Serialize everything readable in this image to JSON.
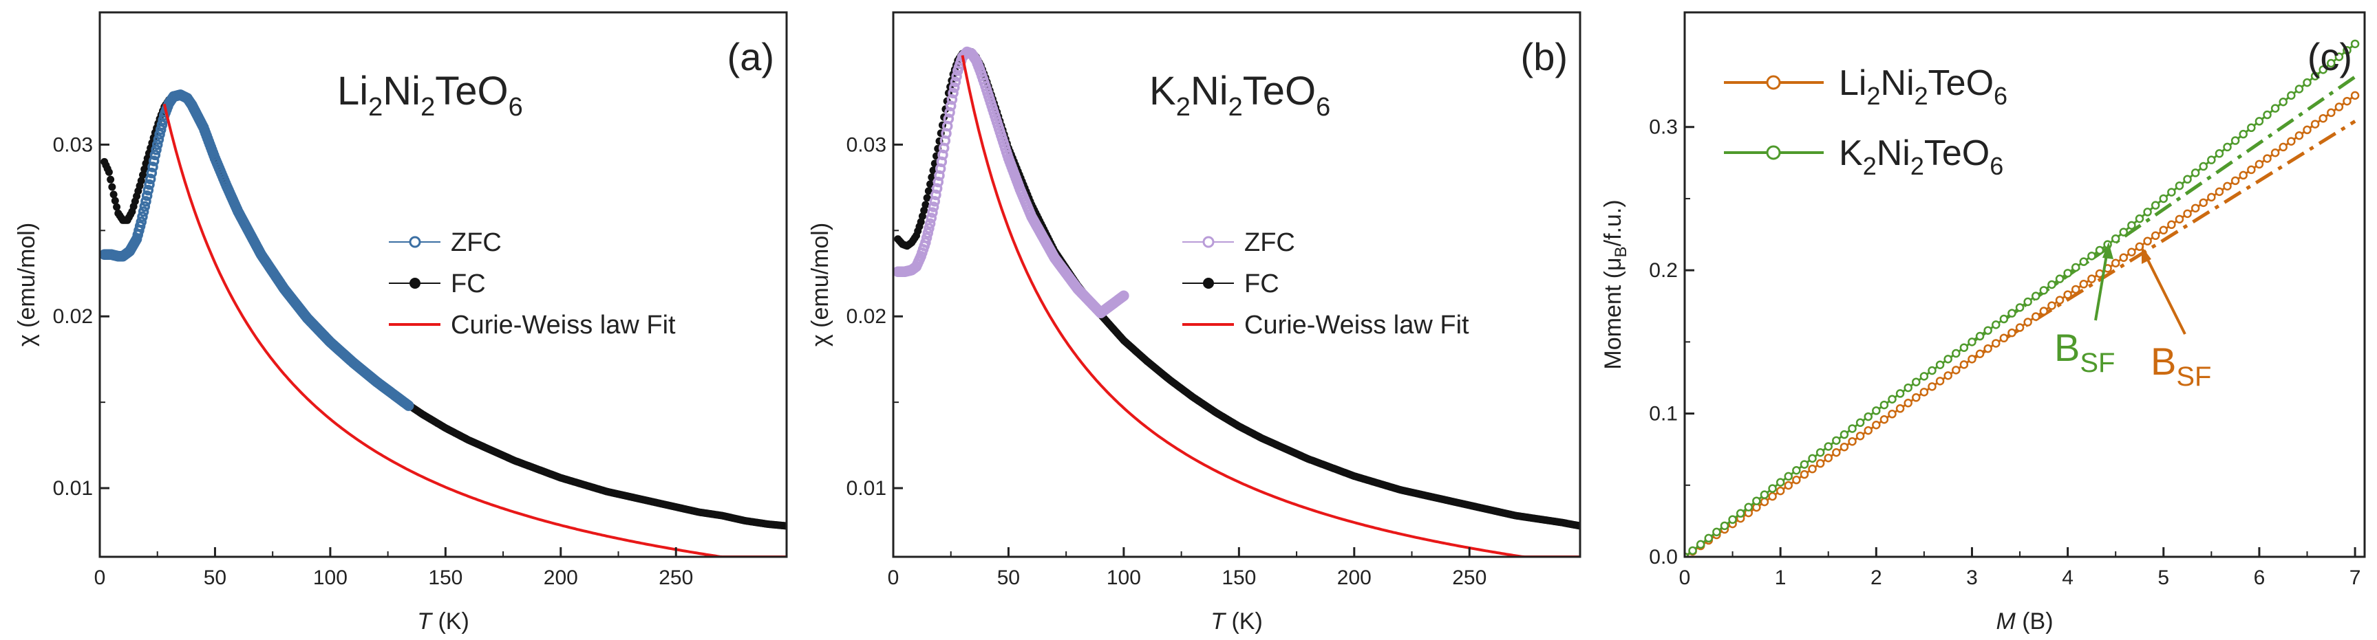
{
  "figure": {
    "panels": [
      {
        "label": "(a)",
        "compound": {
          "parts": [
            "Li",
            "2",
            "Ni",
            "2",
            "TeO",
            "6"
          ]
        },
        "xlabel": {
          "italic": "T",
          "unit": " (K)"
        },
        "ylabel": "χ (emu/mol)",
        "legend": [
          "ZFC",
          "FC",
          "Curie-Weiss law Fit"
        ]
      },
      {
        "label": "(b)",
        "compound": {
          "parts": [
            "K",
            "2",
            "Ni",
            "2",
            "TeO",
            "6"
          ]
        },
        "xlabel": {
          "italic": "T",
          "unit": " (K)"
        },
        "ylabel": "χ (emu/mol)",
        "legend": [
          "ZFC",
          "FC",
          "Curie-Weiss law Fit"
        ]
      },
      {
        "label": "(c)",
        "xlabel": {
          "italic": "M",
          "unit": " (B)"
        },
        "ylabel": {
          "pre": "Moment (μ",
          "sub": "B",
          "post": "/f.u.)"
        },
        "legend": [
          {
            "parts": [
              "Li",
              "2",
              "Ni",
              "2",
              "TeO",
              "6"
            ]
          },
          {
            "parts": [
              "K",
              "2",
              "Ni",
              "2",
              "TeO",
              "6"
            ]
          }
        ],
        "annotations": [
          {
            "main": "B",
            "sub": "SF",
            "color_ref": "K"
          },
          {
            "main": "B",
            "sub": "SF",
            "color_ref": "Li"
          }
        ]
      }
    ]
  },
  "colors": {
    "zfc_a": "#3b6fa3",
    "zfc_b": "#b99cd8",
    "fc": "#111111",
    "fit": "#e81818",
    "li": "#cc6a10",
    "k": "#4f9a2c"
  },
  "chart_data": [
    {
      "type": "scatter",
      "title": "Li2Ni2TeO6",
      "xlabel": "T (K)",
      "ylabel": "χ (emu/mol)",
      "xlim": [
        0,
        298
      ],
      "ylim": [
        0.006,
        0.0377
      ],
      "xticks": [
        0,
        50,
        100,
        150,
        200,
        250
      ],
      "yticks": [
        0.01,
        0.02,
        0.03
      ],
      "ytick_labels": [
        "0.01",
        "0.02",
        "0.03"
      ],
      "series": [
        {
          "name": "ZFC",
          "x": [
            2,
            5,
            8,
            10,
            13,
            16,
            18,
            20,
            22,
            24,
            26,
            28,
            30,
            32,
            35,
            38,
            40,
            45,
            50,
            55,
            60,
            70,
            80,
            90,
            100,
            110,
            120,
            130,
            134
          ],
          "y": [
            0.0236,
            0.0236,
            0.0235,
            0.0235,
            0.0238,
            0.0245,
            0.0255,
            0.0267,
            0.028,
            0.0294,
            0.0306,
            0.0317,
            0.0324,
            0.0328,
            0.0329,
            0.0327,
            0.0323,
            0.031,
            0.0292,
            0.0276,
            0.0261,
            0.0236,
            0.0216,
            0.0199,
            0.0185,
            0.0173,
            0.0162,
            0.0152,
            0.0148
          ]
        },
        {
          "name": "FC",
          "x": [
            2,
            4,
            6,
            8,
            10,
            12,
            14,
            16,
            18,
            20,
            22,
            24,
            26,
            28,
            30,
            32,
            35,
            38,
            40,
            45,
            50,
            60,
            70,
            80,
            90,
            100,
            110,
            120,
            130,
            140,
            150,
            160,
            170,
            180,
            190,
            200,
            210,
            220,
            230,
            240,
            250,
            260,
            270,
            280,
            290,
            298
          ],
          "y": [
            0.029,
            0.0284,
            0.0271,
            0.026,
            0.0256,
            0.0256,
            0.0261,
            0.027,
            0.0279,
            0.0289,
            0.0298,
            0.0307,
            0.0315,
            0.0322,
            0.0326,
            0.0328,
            0.0329,
            0.0327,
            0.0323,
            0.031,
            0.0292,
            0.0261,
            0.0236,
            0.0216,
            0.0199,
            0.0185,
            0.0173,
            0.0162,
            0.0152,
            0.0143,
            0.0135,
            0.0128,
            0.0122,
            0.0116,
            0.0111,
            0.0106,
            0.0102,
            0.0098,
            0.0095,
            0.0092,
            0.0089,
            0.0086,
            0.0084,
            0.0081,
            0.0079,
            0.0078
          ]
        },
        {
          "name": "Curie-Weiss law Fit",
          "line": true,
          "function": "C/(T-θ)",
          "C": 1.78,
          "theta": -27,
          "x_range": [
            28,
            298
          ]
        }
      ],
      "legend": [
        "ZFC",
        "FC",
        "Curie-Weiss law Fit"
      ]
    },
    {
      "type": "scatter",
      "title": "K2Ni2TeO6",
      "xlabel": "T (K)",
      "ylabel": "χ (emu/mol)",
      "xlim": [
        0,
        298
      ],
      "ylim": [
        0.006,
        0.0377
      ],
      "xticks": [
        0,
        50,
        100,
        150,
        200,
        250
      ],
      "yticks": [
        0.01,
        0.02,
        0.03
      ],
      "ytick_labels": [
        "0.01",
        "0.02",
        "0.03"
      ],
      "series": [
        {
          "name": "ZFC",
          "x": [
            2,
            5,
            8,
            10,
            12,
            14,
            16,
            18,
            20,
            22,
            24,
            26,
            28,
            30,
            32,
            34,
            36,
            38,
            40,
            45,
            50,
            55,
            60,
            70,
            80,
            90,
            100
          ],
          "y": [
            0.0226,
            0.0226,
            0.0227,
            0.0229,
            0.0235,
            0.0243,
            0.0254,
            0.0267,
            0.0282,
            0.0298,
            0.0315,
            0.033,
            0.0343,
            0.0351,
            0.0354,
            0.0353,
            0.0349,
            0.0342,
            0.0334,
            0.0313,
            0.0292,
            0.0274,
            0.0258,
            0.0234,
            0.0216,
            0.0202,
            0.0212
          ]
        },
        {
          "name": "FC",
          "x": [
            2,
            4,
            6,
            8,
            10,
            12,
            14,
            16,
            18,
            20,
            22,
            24,
            26,
            28,
            30,
            32,
            34,
            36,
            38,
            40,
            45,
            50,
            60,
            70,
            80,
            90,
            100,
            110,
            120,
            130,
            140,
            150,
            160,
            170,
            180,
            190,
            200,
            210,
            220,
            230,
            240,
            250,
            260,
            270,
            280,
            290,
            298
          ],
          "y": [
            0.0245,
            0.0242,
            0.0241,
            0.0243,
            0.0247,
            0.0255,
            0.0265,
            0.0277,
            0.0289,
            0.0302,
            0.0316,
            0.033,
            0.0341,
            0.0349,
            0.0353,
            0.0354,
            0.0354,
            0.0351,
            0.0346,
            0.0339,
            0.0319,
            0.0298,
            0.0265,
            0.0238,
            0.0218,
            0.0201,
            0.0186,
            0.0174,
            0.0163,
            0.0153,
            0.0144,
            0.0136,
            0.0129,
            0.0123,
            0.0117,
            0.0112,
            0.0107,
            0.0103,
            0.0099,
            0.0096,
            0.0093,
            0.009,
            0.0087,
            0.0084,
            0.0082,
            0.008,
            0.0078
          ]
        },
        {
          "name": "Curie-Weiss law Fit",
          "line": true,
          "function": "C/(T-θ)",
          "C": 1.76,
          "theta": -20,
          "x_range": [
            30,
            298
          ]
        }
      ],
      "legend": [
        "ZFC",
        "FC",
        "Curie-Weiss law Fit"
      ]
    },
    {
      "type": "line",
      "xlabel": "M (B)",
      "ylabel": "Moment (μB/f.u.)",
      "xlim": [
        0,
        7.1
      ],
      "ylim": [
        0,
        0.38
      ],
      "xticks": [
        0,
        1,
        2,
        3,
        4,
        5,
        6,
        7
      ],
      "yticks": [
        0.0,
        0.1,
        0.2,
        0.3
      ],
      "ytick_labels": [
        "0.0",
        "0.1",
        "0.2",
        "0.3"
      ],
      "series": [
        {
          "name": "Li2Ni2TeO6",
          "x": [
            0,
            0.5,
            1,
            1.5,
            2,
            2.5,
            3,
            3.5,
            4,
            4.5,
            5,
            5.5,
            6,
            6.5,
            7
          ],
          "y": [
            0,
            0.023,
            0.046,
            0.069,
            0.092,
            0.115,
            0.138,
            0.16,
            0.183,
            0.205,
            0.228,
            0.251,
            0.274,
            0.298,
            0.322
          ]
        },
        {
          "name": "K2Ni2TeO6",
          "x": [
            0,
            0.5,
            1,
            1.5,
            2,
            2.5,
            3,
            3.5,
            4,
            4.5,
            5,
            5.5,
            6,
            6.5,
            7
          ],
          "y": [
            0,
            0.026,
            0.052,
            0.077,
            0.102,
            0.126,
            0.15,
            0.174,
            0.198,
            0.222,
            0.25,
            0.277,
            0.304,
            0.331,
            0.358
          ]
        },
        {
          "name": "Li2Ni2TeO6 linear fit",
          "dashed": true,
          "x": [
            3,
            7
          ],
          "y": [
            0.138,
            0.304
          ]
        },
        {
          "name": "K2Ni2TeO6 linear fit",
          "dashed": true,
          "x": [
            3,
            7
          ],
          "y": [
            0.15,
            0.335
          ]
        }
      ],
      "annotations": [
        {
          "text": "BSF",
          "series": "K2Ni2TeO6",
          "at_x": 4.4
        },
        {
          "text": "BSF",
          "series": "Li2Ni2TeO6",
          "at_x": 4.8
        }
      ],
      "legend": [
        "Li2Ni2TeO6",
        "K2Ni2TeO6"
      ]
    }
  ]
}
